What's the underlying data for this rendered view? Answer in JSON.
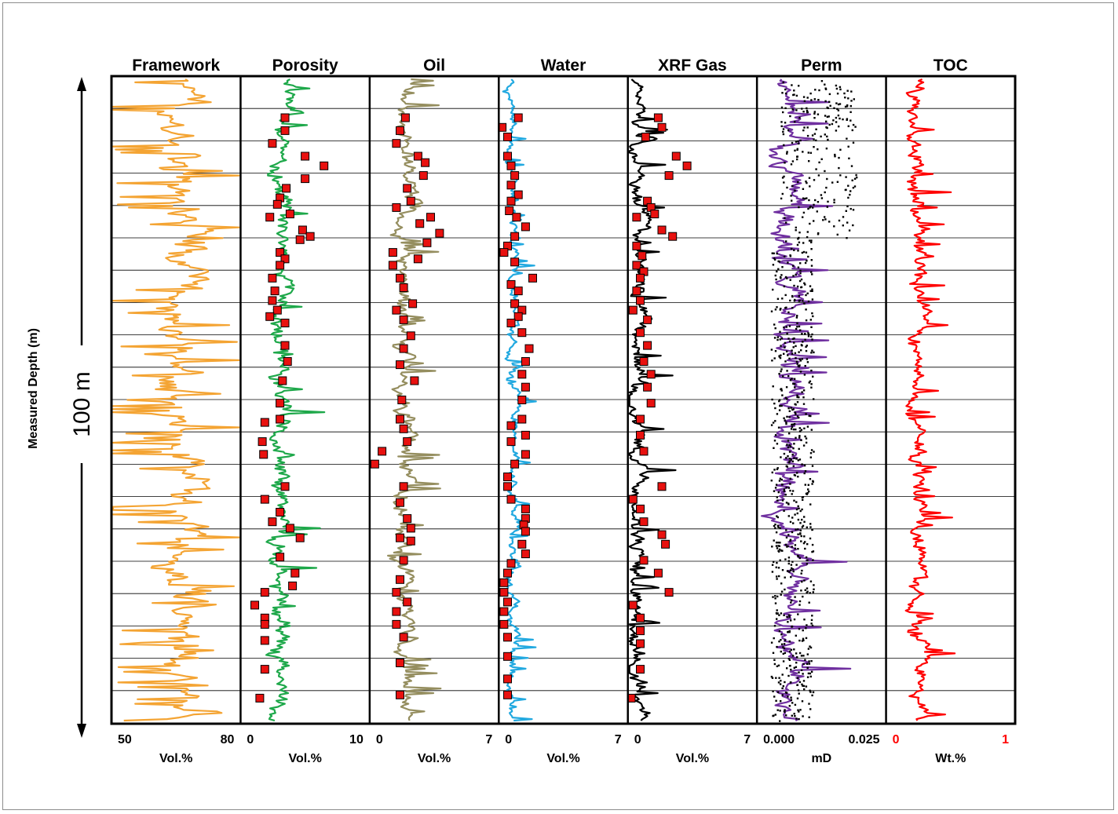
{
  "chart_data": {
    "type": "well-log",
    "y_axis": {
      "label": "Measured Depth (m)",
      "scale_bar": "100 m"
    },
    "tracks": [
      {
        "title": "Framework",
        "min_label": "50",
        "max_label": "80",
        "xlim": [
          50,
          80
        ],
        "unit": "Vol.%",
        "curve_color": "#f4a433",
        "base": 66,
        "amp": 6,
        "seed": 11
      },
      {
        "title": "Porosity",
        "min_label": "0",
        "max_label": "10",
        "xlim": [
          0,
          10
        ],
        "unit": "Vol.%",
        "curve_color": "#1ea84a",
        "marker_color": "#e8110f",
        "base": 3.2,
        "amp": 0.9,
        "seed": 23,
        "samples": [
          {
            "d": 0.06,
            "v": 3.4
          },
          {
            "d": 0.08,
            "v": 3.4
          },
          {
            "d": 0.1,
            "v": 2.4
          },
          {
            "d": 0.12,
            "v": 5.0
          },
          {
            "d": 0.135,
            "v": 6.5
          },
          {
            "d": 0.155,
            "v": 5.0
          },
          {
            "d": 0.17,
            "v": 3.5
          },
          {
            "d": 0.185,
            "v": 3.0
          },
          {
            "d": 0.195,
            "v": 2.8
          },
          {
            "d": 0.21,
            "v": 3.8
          },
          {
            "d": 0.215,
            "v": 2.2
          },
          {
            "d": 0.235,
            "v": 4.8
          },
          {
            "d": 0.245,
            "v": 5.4
          },
          {
            "d": 0.25,
            "v": 4.6
          },
          {
            "d": 0.27,
            "v": 3.0
          },
          {
            "d": 0.28,
            "v": 3.4
          },
          {
            "d": 0.29,
            "v": 3.0
          },
          {
            "d": 0.31,
            "v": 2.4
          },
          {
            "d": 0.33,
            "v": 2.6
          },
          {
            "d": 0.345,
            "v": 2.4
          },
          {
            "d": 0.36,
            "v": 2.8
          },
          {
            "d": 0.37,
            "v": 2.2
          },
          {
            "d": 0.38,
            "v": 3.4
          },
          {
            "d": 0.415,
            "v": 3.4
          },
          {
            "d": 0.44,
            "v": 3.6
          },
          {
            "d": 0.47,
            "v": 3.2
          },
          {
            "d": 0.505,
            "v": 3.0
          },
          {
            "d": 0.53,
            "v": 3.0
          },
          {
            "d": 0.535,
            "v": 1.8
          },
          {
            "d": 0.565,
            "v": 1.6
          },
          {
            "d": 0.585,
            "v": 1.7
          },
          {
            "d": 0.635,
            "v": 3.4
          },
          {
            "d": 0.655,
            "v": 1.8
          },
          {
            "d": 0.675,
            "v": 3.0
          },
          {
            "d": 0.69,
            "v": 2.4
          },
          {
            "d": 0.7,
            "v": 3.8
          },
          {
            "d": 0.715,
            "v": 4.6
          },
          {
            "d": 0.745,
            "v": 3.0
          },
          {
            "d": 0.77,
            "v": 4.2
          },
          {
            "d": 0.79,
            "v": 4.0
          },
          {
            "d": 0.8,
            "v": 1.8
          },
          {
            "d": 0.82,
            "v": 1.0
          },
          {
            "d": 0.84,
            "v": 1.8
          },
          {
            "d": 0.85,
            "v": 1.8
          },
          {
            "d": 0.875,
            "v": 1.8
          },
          {
            "d": 0.92,
            "v": 1.8
          },
          {
            "d": 0.965,
            "v": 1.4
          }
        ]
      },
      {
        "title": "Oil",
        "min_label": "0",
        "max_label": "7",
        "xlim": [
          0,
          7
        ],
        "unit": "Vol.%",
        "curve_color": "#958e5f",
        "marker_color": "#e8110f",
        "base": 1.9,
        "amp": 0.6,
        "seed": 37,
        "samples": [
          {
            "d": 0.06,
            "v": 1.9
          },
          {
            "d": 0.08,
            "v": 1.6
          },
          {
            "d": 0.1,
            "v": 1.4
          },
          {
            "d": 0.12,
            "v": 2.6
          },
          {
            "d": 0.13,
            "v": 3.0
          },
          {
            "d": 0.15,
            "v": 2.9
          },
          {
            "d": 0.17,
            "v": 2.0
          },
          {
            "d": 0.19,
            "v": 2.2
          },
          {
            "d": 0.2,
            "v": 1.4
          },
          {
            "d": 0.215,
            "v": 3.3
          },
          {
            "d": 0.225,
            "v": 2.7
          },
          {
            "d": 0.24,
            "v": 3.8
          },
          {
            "d": 0.255,
            "v": 3.1
          },
          {
            "d": 0.27,
            "v": 1.2
          },
          {
            "d": 0.28,
            "v": 2.6
          },
          {
            "d": 0.29,
            "v": 1.2
          },
          {
            "d": 0.31,
            "v": 1.6
          },
          {
            "d": 0.325,
            "v": 1.8
          },
          {
            "d": 0.35,
            "v": 2.3
          },
          {
            "d": 0.36,
            "v": 1.4
          },
          {
            "d": 0.375,
            "v": 1.8
          },
          {
            "d": 0.4,
            "v": 2.2
          },
          {
            "d": 0.42,
            "v": 1.8
          },
          {
            "d": 0.445,
            "v": 1.6
          },
          {
            "d": 0.47,
            "v": 2.4
          },
          {
            "d": 0.5,
            "v": 1.7
          },
          {
            "d": 0.53,
            "v": 1.6
          },
          {
            "d": 0.545,
            "v": 1.8
          },
          {
            "d": 0.565,
            "v": 2.0
          },
          {
            "d": 0.58,
            "v": 0.6
          },
          {
            "d": 0.6,
            "v": 0.2
          },
          {
            "d": 0.635,
            "v": 1.8
          },
          {
            "d": 0.66,
            "v": 1.6
          },
          {
            "d": 0.685,
            "v": 2.0
          },
          {
            "d": 0.7,
            "v": 2.2
          },
          {
            "d": 0.715,
            "v": 1.6
          },
          {
            "d": 0.72,
            "v": 2.2
          },
          {
            "d": 0.75,
            "v": 1.8
          },
          {
            "d": 0.78,
            "v": 1.6
          },
          {
            "d": 0.8,
            "v": 1.4
          },
          {
            "d": 0.815,
            "v": 2.0
          },
          {
            "d": 0.83,
            "v": 1.4
          },
          {
            "d": 0.85,
            "v": 1.4
          },
          {
            "d": 0.87,
            "v": 1.8
          },
          {
            "d": 0.91,
            "v": 1.6
          },
          {
            "d": 0.96,
            "v": 1.6
          }
        ]
      },
      {
        "title": "Water",
        "min_label": "0",
        "max_label": "7",
        "xlim": [
          0,
          7
        ],
        "unit": "Vol.%",
        "curve_color": "#22a9e0",
        "marker_color": "#e8110f",
        "base": 0.7,
        "amp": 0.35,
        "seed": 53,
        "samples": [
          {
            "d": 0.06,
            "v": 1.0
          },
          {
            "d": 0.075,
            "v": 0.1
          },
          {
            "d": 0.09,
            "v": 0.4
          },
          {
            "d": 0.12,
            "v": 0.4
          },
          {
            "d": 0.135,
            "v": 0.6
          },
          {
            "d": 0.15,
            "v": 0.8
          },
          {
            "d": 0.165,
            "v": 0.6
          },
          {
            "d": 0.18,
            "v": 1.0
          },
          {
            "d": 0.19,
            "v": 0.6
          },
          {
            "d": 0.205,
            "v": 0.5
          },
          {
            "d": 0.215,
            "v": 0.9
          },
          {
            "d": 0.23,
            "v": 1.4
          },
          {
            "d": 0.245,
            "v": 0.8
          },
          {
            "d": 0.26,
            "v": 0.4
          },
          {
            "d": 0.27,
            "v": 0.2
          },
          {
            "d": 0.285,
            "v": 0.8
          },
          {
            "d": 0.31,
            "v": 1.8
          },
          {
            "d": 0.32,
            "v": 0.6
          },
          {
            "d": 0.33,
            "v": 1.0
          },
          {
            "d": 0.35,
            "v": 0.8
          },
          {
            "d": 0.36,
            "v": 1.2
          },
          {
            "d": 0.37,
            "v": 1.0
          },
          {
            "d": 0.38,
            "v": 0.6
          },
          {
            "d": 0.395,
            "v": 1.2
          },
          {
            "d": 0.42,
            "v": 1.6
          },
          {
            "d": 0.44,
            "v": 1.4
          },
          {
            "d": 0.46,
            "v": 1.2
          },
          {
            "d": 0.48,
            "v": 1.4
          },
          {
            "d": 0.5,
            "v": 1.2
          },
          {
            "d": 0.53,
            "v": 1.2
          },
          {
            "d": 0.54,
            "v": 0.6
          },
          {
            "d": 0.555,
            "v": 1.4
          },
          {
            "d": 0.565,
            "v": 0.6
          },
          {
            "d": 0.585,
            "v": 1.4
          },
          {
            "d": 0.6,
            "v": 0.8
          },
          {
            "d": 0.62,
            "v": 0.4
          },
          {
            "d": 0.635,
            "v": 0.4
          },
          {
            "d": 0.655,
            "v": 0.6
          },
          {
            "d": 0.67,
            "v": 1.4
          },
          {
            "d": 0.685,
            "v": 1.4
          },
          {
            "d": 0.695,
            "v": 1.3
          },
          {
            "d": 0.705,
            "v": 1.4
          },
          {
            "d": 0.725,
            "v": 1.2
          },
          {
            "d": 0.74,
            "v": 1.4
          },
          {
            "d": 0.755,
            "v": 0.6
          },
          {
            "d": 0.77,
            "v": 0.4
          },
          {
            "d": 0.785,
            "v": 0.2
          },
          {
            "d": 0.8,
            "v": 0.2
          },
          {
            "d": 0.815,
            "v": 0.4
          },
          {
            "d": 0.83,
            "v": 0.2
          },
          {
            "d": 0.85,
            "v": 0.2
          },
          {
            "d": 0.87,
            "v": 0.4
          },
          {
            "d": 0.9,
            "v": 0.4
          },
          {
            "d": 0.935,
            "v": 0.4
          },
          {
            "d": 0.96,
            "v": 0.4
          }
        ]
      },
      {
        "title": "XRF Gas",
        "min_label": "0",
        "max_label": "7",
        "xlim": [
          0,
          7
        ],
        "unit": "Vol.%",
        "curve_color": "#000000",
        "marker_color": "#e8110f",
        "base": 0.5,
        "amp": 0.5,
        "seed": 71,
        "samples": [
          {
            "d": 0.06,
            "v": 1.6
          },
          {
            "d": 0.075,
            "v": 1.8
          },
          {
            "d": 0.09,
            "v": 0.9
          },
          {
            "d": 0.12,
            "v": 2.6
          },
          {
            "d": 0.135,
            "v": 3.2
          },
          {
            "d": 0.15,
            "v": 2.2
          },
          {
            "d": 0.19,
            "v": 1.0
          },
          {
            "d": 0.2,
            "v": 1.2
          },
          {
            "d": 0.21,
            "v": 1.4
          },
          {
            "d": 0.215,
            "v": 0.4
          },
          {
            "d": 0.235,
            "v": 1.8
          },
          {
            "d": 0.245,
            "v": 2.4
          },
          {
            "d": 0.26,
            "v": 0.4
          },
          {
            "d": 0.275,
            "v": 0.7
          },
          {
            "d": 0.29,
            "v": 0.4
          },
          {
            "d": 0.3,
            "v": 0.8
          },
          {
            "d": 0.31,
            "v": 0.6
          },
          {
            "d": 0.33,
            "v": 0.4
          },
          {
            "d": 0.345,
            "v": 0.6
          },
          {
            "d": 0.36,
            "v": 0.2
          },
          {
            "d": 0.375,
            "v": 1.0
          },
          {
            "d": 0.395,
            "v": 0.6
          },
          {
            "d": 0.415,
            "v": 1.0
          },
          {
            "d": 0.44,
            "v": 0.8
          },
          {
            "d": 0.46,
            "v": 1.2
          },
          {
            "d": 0.48,
            "v": 1.0
          },
          {
            "d": 0.505,
            "v": 1.2
          },
          {
            "d": 0.53,
            "v": 0.6
          },
          {
            "d": 0.555,
            "v": 0.6
          },
          {
            "d": 0.58,
            "v": 0.8
          },
          {
            "d": 0.635,
            "v": 1.8
          },
          {
            "d": 0.655,
            "v": 0.2
          },
          {
            "d": 0.67,
            "v": 0.6
          },
          {
            "d": 0.69,
            "v": 0.8
          },
          {
            "d": 0.71,
            "v": 1.8
          },
          {
            "d": 0.725,
            "v": 2.0
          },
          {
            "d": 0.75,
            "v": 0.8
          },
          {
            "d": 0.77,
            "v": 1.6
          },
          {
            "d": 0.8,
            "v": 2.2
          },
          {
            "d": 0.82,
            "v": 0.2
          },
          {
            "d": 0.84,
            "v": 0.6
          },
          {
            "d": 0.86,
            "v": 0.6
          },
          {
            "d": 0.88,
            "v": 0.6
          },
          {
            "d": 0.92,
            "v": 0.6
          },
          {
            "d": 0.965,
            "v": 0.1
          }
        ]
      },
      {
        "title": "Perm",
        "min_label": "0.000",
        "max_label": "0.025",
        "xlim": [
          0.0,
          0.025
        ],
        "unit": "mD",
        "curve_color": "#7030a0",
        "dot_color": "#000000",
        "base": 0.006,
        "amp": 0.003,
        "seed": 89
      },
      {
        "title": "TOC",
        "min_label": "0",
        "max_label": "1",
        "xlim": [
          0,
          1
        ],
        "unit": "Wt.%",
        "curve_color": "#ff0000",
        "label_color": "#ff0000",
        "base": 0.24,
        "amp": 0.08,
        "seed": 97
      }
    ]
  }
}
